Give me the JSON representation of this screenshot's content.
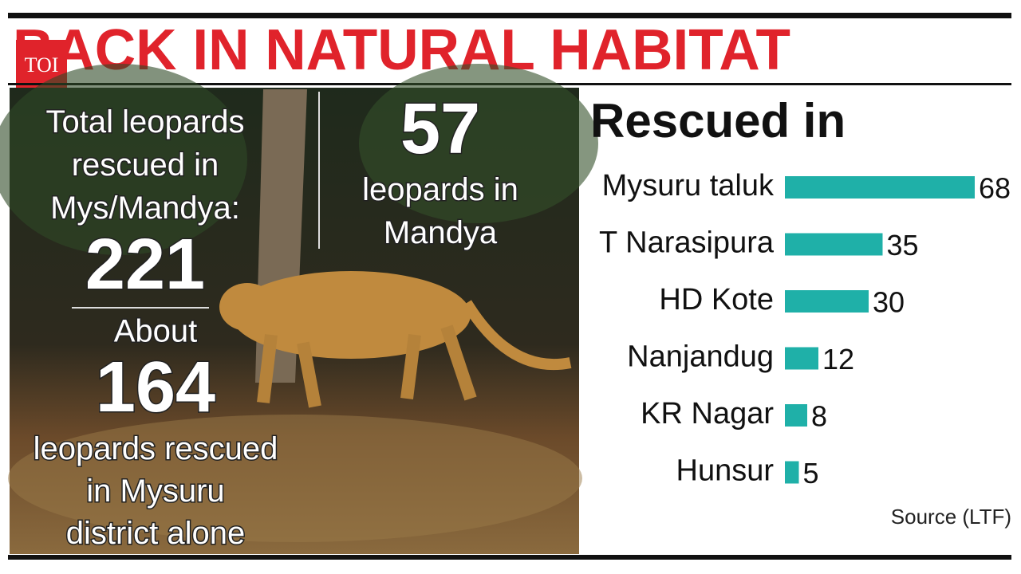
{
  "header": {
    "title": "BACK IN NATURAL HABITAT",
    "logo": "TOI"
  },
  "panel": {
    "total_label": "Total leopards rescued in Mys/Mandya:",
    "total": "221",
    "about": "About",
    "mysuru": "164",
    "mysuru_label": "leopards rescued in Mysuru district alone",
    "mandya": "57",
    "mandya_label": "leopards in Mandya"
  },
  "chart_data": {
    "type": "bar",
    "orientation": "horizontal",
    "title": "Rescued in",
    "categories": [
      "Mysuru taluk",
      "T Narasipura",
      "HD Kote",
      "Nanjandug",
      "KR Nagar",
      "Hunsur"
    ],
    "values": [
      68,
      35,
      30,
      12,
      8,
      5
    ],
    "color": "#1fb0a8",
    "source": "Source (LTF)"
  }
}
